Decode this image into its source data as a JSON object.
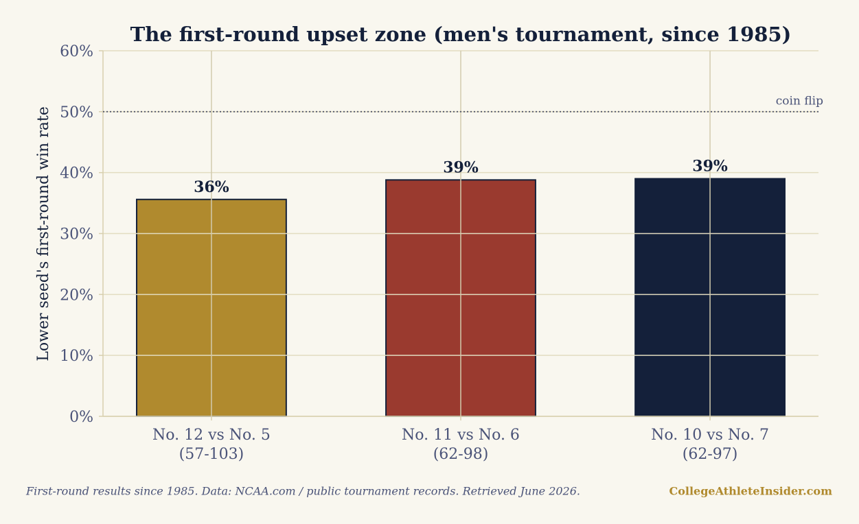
{
  "chart_data": {
    "type": "bar",
    "title": "The first-round upset zone (men's tournament, since 1985)",
    "y_label": "Lower seed's first-round win rate",
    "categories": [
      "No. 12 vs No. 5",
      "No. 11 vs No. 6",
      "No. 10 vs No. 7"
    ],
    "records": [
      "(57-103)",
      "(62-98)",
      "(62-97)"
    ],
    "values": [
      35.6,
      38.8,
      39.0
    ],
    "value_labels": [
      "36%",
      "39%",
      "39%"
    ],
    "colors": [
      "#b08a2e",
      "#9a3a2f",
      "#14203a"
    ],
    "ylim": [
      0,
      60
    ],
    "yticks": [
      {
        "value": 0,
        "label": "0%"
      },
      {
        "value": 10,
        "label": "10%"
      },
      {
        "value": 20,
        "label": "20%"
      },
      {
        "value": 30,
        "label": "30%"
      },
      {
        "value": 40,
        "label": "40%"
      },
      {
        "value": 50,
        "label": "50%"
      },
      {
        "value": 60,
        "label": "60%"
      }
    ],
    "grid": true,
    "reference_line": {
      "value": 50,
      "label": "coin flip"
    },
    "source": "First-round results since 1985.  Data: NCAA.com / public tournament records. Retrieved June 2026.",
    "brand": "CollegeAthleteInsider.com"
  }
}
